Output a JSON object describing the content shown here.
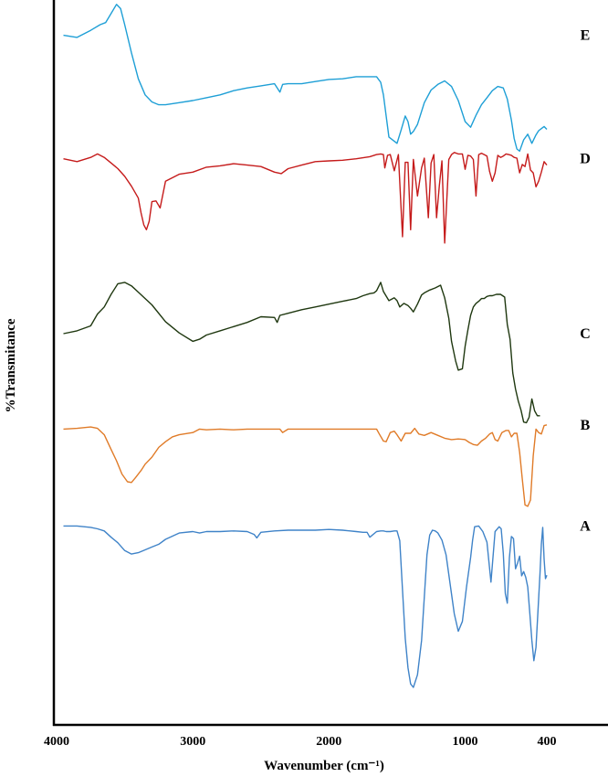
{
  "chart_data": {
    "type": "line",
    "title": "",
    "xlabel": "Wavenumber (cm⁻¹)",
    "ylabel": "%Transmitance",
    "xlim": [
      4000,
      400
    ],
    "x_reversed": true,
    "ylim": [
      0,
      100
    ],
    "y_ticks_shown": false,
    "grid": false,
    "x_ticks": [
      4000,
      3000,
      2000,
      1000,
      400
    ],
    "x_tick_labels": [
      "4000",
      "3000",
      "2000",
      "1000",
      "400"
    ],
    "series": [
      {
        "name": "E",
        "color": "#1e9fd6",
        "x": [
          3950,
          3850,
          3750,
          3680,
          3640,
          3600,
          3560,
          3530,
          3500,
          3450,
          3400,
          3350,
          3300,
          3250,
          3200,
          3100,
          3000,
          2900,
          2800,
          2700,
          2600,
          2500,
          2400,
          2360,
          2340,
          2300,
          2200,
          2100,
          2000,
          1900,
          1800,
          1700,
          1650,
          1620,
          1600,
          1560,
          1500,
          1470,
          1440,
          1420,
          1400,
          1380,
          1350,
          1300,
          1250,
          1200,
          1150,
          1100,
          1050,
          1000,
          960,
          920,
          880,
          840,
          800,
          760,
          720,
          690,
          660,
          640,
          620,
          600,
          570,
          540,
          510,
          480,
          460,
          440,
          420,
          400
        ],
        "y": [
          95.5,
          95.2,
          96.2,
          97.0,
          97.3,
          98.6,
          99.9,
          99.3,
          97.0,
          93.0,
          89.3,
          87.0,
          86.0,
          85.6,
          85.6,
          85.9,
          86.2,
          86.6,
          87.0,
          87.6,
          88.0,
          88.3,
          88.6,
          87.4,
          88.5,
          88.6,
          88.6,
          88.9,
          89.2,
          89.3,
          89.6,
          89.6,
          89.6,
          88.8,
          87.0,
          81.0,
          80.1,
          82.0,
          84.0,
          83.2,
          81.4,
          81.8,
          82.8,
          85.9,
          87.7,
          88.5,
          89.0,
          88.2,
          86.2,
          83.2,
          82.4,
          84.1,
          85.6,
          86.6,
          87.6,
          88.2,
          88.0,
          86.4,
          83.4,
          80.8,
          79.3,
          79.0,
          80.6,
          81.4,
          80.1,
          81.3,
          81.9,
          82.2,
          82.5,
          82.1
        ]
      },
      {
        "name": "D",
        "color": "#c51b1b",
        "x": [
          3950,
          3850,
          3750,
          3700,
          3650,
          3600,
          3550,
          3500,
          3450,
          3400,
          3380,
          3360,
          3340,
          3320,
          3300,
          3270,
          3240,
          3200,
          3100,
          3000,
          2900,
          2800,
          2700,
          2600,
          2500,
          2400,
          2350,
          2300,
          2200,
          2100,
          2000,
          1900,
          1800,
          1700,
          1650,
          1620,
          1600,
          1590,
          1570,
          1550,
          1520,
          1490,
          1460,
          1440,
          1420,
          1400,
          1380,
          1350,
          1320,
          1300,
          1270,
          1250,
          1230,
          1210,
          1190,
          1170,
          1150,
          1120,
          1100,
          1080,
          1050,
          1020,
          1000,
          980,
          960,
          940,
          920,
          900,
          880,
          860,
          840,
          820,
          800,
          780,
          760,
          740,
          720,
          700,
          680,
          660,
          640,
          620,
          600,
          580,
          560,
          540,
          520,
          500,
          480,
          460,
          440,
          420,
          400
        ],
        "y": [
          77.9,
          77.5,
          78.1,
          78.6,
          78.1,
          77.3,
          76.5,
          75.4,
          74.0,
          72.3,
          70.2,
          68.5,
          67.8,
          69.0,
          71.8,
          71.9,
          70.9,
          74.7,
          75.7,
          76.0,
          76.7,
          76.9,
          77.2,
          77.0,
          76.8,
          76.0,
          75.8,
          76.5,
          77.0,
          77.5,
          77.6,
          77.7,
          77.9,
          78.2,
          78.5,
          78.6,
          78.5,
          76.6,
          78.4,
          78.5,
          76.2,
          78.5,
          66.8,
          77.4,
          77.4,
          67.8,
          77.8,
          72.6,
          76.6,
          78.0,
          69.5,
          77.3,
          78.5,
          69.5,
          74.0,
          77.6,
          65.9,
          77.8,
          78.5,
          78.8,
          78.6,
          78.6,
          76.4,
          78.4,
          78.3,
          77.8,
          72.6,
          78.5,
          78.7,
          78.5,
          78.3,
          76.1,
          74.7,
          75.9,
          78.4,
          78.1,
          78.3,
          78.6,
          78.5,
          78.4,
          78.1,
          78.0,
          75.9,
          77.1,
          76.8,
          78.6,
          76.3,
          75.9,
          73.9,
          74.7,
          76.0,
          77.5,
          77.0
        ]
      },
      {
        "name": "C",
        "color": "#1f3810",
        "x": [
          3950,
          3850,
          3750,
          3700,
          3650,
          3600,
          3550,
          3500,
          3450,
          3400,
          3300,
          3200,
          3100,
          3000,
          2950,
          2900,
          2800,
          2700,
          2600,
          2500,
          2400,
          2380,
          2360,
          2300,
          2200,
          2100,
          2000,
          1900,
          1800,
          1750,
          1700,
          1670,
          1650,
          1620,
          1600,
          1560,
          1520,
          1500,
          1480,
          1450,
          1420,
          1400,
          1380,
          1350,
          1320,
          1300,
          1260,
          1220,
          1180,
          1150,
          1120,
          1100,
          1070,
          1050,
          1020,
          1000,
          980,
          960,
          940,
          920,
          900,
          880,
          860,
          840,
          820,
          800,
          770,
          740,
          710,
          690,
          670,
          650,
          630,
          610,
          590,
          570,
          550,
          530,
          510,
          490,
          470,
          450
        ],
        "y": [
          53.0,
          53.4,
          54.1,
          55.8,
          56.8,
          58.6,
          60.1,
          60.3,
          59.8,
          58.9,
          57.1,
          54.7,
          53.1,
          51.9,
          52.2,
          52.8,
          53.4,
          54.0,
          54.6,
          55.4,
          55.3,
          54.6,
          55.6,
          55.9,
          56.4,
          56.8,
          57.2,
          57.6,
          58.0,
          58.4,
          58.7,
          58.8,
          59.1,
          60.3,
          59.0,
          57.7,
          58.1,
          57.7,
          56.8,
          57.3,
          57.0,
          56.6,
          56.1,
          57.2,
          58.5,
          58.8,
          59.2,
          59.5,
          59.9,
          58.1,
          55.2,
          51.9,
          49.1,
          47.8,
          48.0,
          51.2,
          53.5,
          55.6,
          56.8,
          57.3,
          57.6,
          58.0,
          58.0,
          58.3,
          58.4,
          58.4,
          58.6,
          58.6,
          58.2,
          54.3,
          52.2,
          47.4,
          45.1,
          43.4,
          42.1,
          40.4,
          40.3,
          41.1,
          43.7,
          42.0,
          41.3,
          41.3
        ]
      },
      {
        "name": "B",
        "color": "#e07b28",
        "x": [
          3950,
          3850,
          3750,
          3700,
          3650,
          3600,
          3560,
          3520,
          3480,
          3450,
          3420,
          3380,
          3350,
          3300,
          3250,
          3200,
          3150,
          3100,
          3000,
          2950,
          2900,
          2800,
          2700,
          2600,
          2500,
          2400,
          2360,
          2340,
          2300,
          2200,
          2100,
          2000,
          1900,
          1800,
          1700,
          1650,
          1630,
          1600,
          1580,
          1550,
          1520,
          1500,
          1470,
          1440,
          1400,
          1370,
          1340,
          1300,
          1250,
          1200,
          1150,
          1100,
          1050,
          1000,
          970,
          940,
          910,
          880,
          850,
          820,
          800,
          780,
          760,
          730,
          700,
          680,
          660,
          640,
          620,
          600,
          580,
          560,
          540,
          520,
          500,
          480,
          460,
          440,
          420,
          400
        ],
        "y": [
          39.4,
          39.5,
          39.7,
          39.5,
          38.6,
          36.5,
          34.9,
          33.0,
          31.9,
          31.8,
          32.5,
          33.5,
          34.4,
          35.4,
          36.8,
          37.6,
          38.3,
          38.6,
          38.9,
          39.4,
          39.3,
          39.4,
          39.3,
          39.4,
          39.4,
          39.4,
          39.4,
          38.9,
          39.4,
          39.4,
          39.4,
          39.4,
          39.4,
          39.4,
          39.4,
          39.4,
          38.7,
          37.7,
          37.6,
          38.9,
          39.1,
          38.6,
          37.7,
          38.8,
          38.8,
          39.5,
          38.7,
          38.5,
          38.9,
          38.5,
          38.1,
          37.9,
          38.0,
          37.9,
          37.5,
          37.2,
          37.1,
          37.7,
          38.1,
          38.7,
          38.9,
          37.9,
          37.7,
          38.9,
          39.2,
          39.2,
          38.3,
          38.8,
          38.8,
          36.1,
          32.3,
          28.6,
          28.4,
          29.3,
          35.6,
          39.4,
          38.9,
          38.7,
          39.9,
          40.0
        ]
      },
      {
        "name": "A",
        "color": "#3f83c8",
        "x": [
          3950,
          3850,
          3750,
          3700,
          3650,
          3600,
          3550,
          3500,
          3450,
          3400,
          3350,
          3300,
          3250,
          3200,
          3100,
          3000,
          2950,
          2900,
          2800,
          2700,
          2600,
          2550,
          2530,
          2500,
          2400,
          2300,
          2200,
          2100,
          2000,
          1900,
          1800,
          1750,
          1720,
          1700,
          1650,
          1620,
          1600,
          1580,
          1560,
          1550,
          1520,
          1500,
          1480,
          1460,
          1440,
          1420,
          1400,
          1380,
          1350,
          1320,
          1300,
          1280,
          1260,
          1240,
          1220,
          1200,
          1170,
          1140,
          1110,
          1080,
          1050,
          1020,
          990,
          960,
          945,
          930,
          900,
          870,
          840,
          810,
          780,
          750,
          735,
          720,
          705,
          690,
          675,
          660,
          645,
          630,
          615,
          600,
          585,
          570,
          555,
          540,
          525,
          510,
          495,
          480,
          465,
          450,
          440,
          430,
          420,
          410,
          400
        ],
        "y": [
          25.6,
          25.6,
          25.4,
          25.2,
          24.9,
          24.0,
          23.2,
          22.1,
          21.6,
          21.8,
          22.2,
          22.6,
          23.0,
          23.7,
          24.6,
          24.8,
          24.6,
          24.8,
          24.8,
          24.9,
          24.8,
          24.4,
          23.9,
          24.7,
          24.9,
          25.0,
          25.0,
          25.0,
          25.1,
          25.0,
          24.8,
          24.7,
          24.7,
          24.0,
          24.8,
          24.9,
          24.9,
          24.8,
          24.8,
          24.8,
          24.9,
          24.9,
          23.5,
          16.5,
          9.6,
          5.4,
          3.1,
          2.6,
          4.4,
          9.3,
          15.5,
          21.5,
          24.3,
          25.0,
          24.9,
          24.6,
          23.6,
          21.5,
          17.3,
          13.1,
          10.6,
          12.0,
          16.9,
          21.1,
          23.6,
          25.5,
          25.6,
          24.8,
          23.3,
          17.6,
          24.8,
          25.5,
          25.2,
          21.7,
          16.0,
          14.6,
          21.1,
          24.1,
          23.8,
          19.5,
          20.3,
          21.3,
          18.5,
          19.1,
          18.3,
          16.9,
          13.1,
          9.3,
          6.4,
          8.3,
          13.5,
          18.8,
          23.0,
          25.4,
          20.9,
          18.1,
          18.6
        ]
      }
    ]
  }
}
